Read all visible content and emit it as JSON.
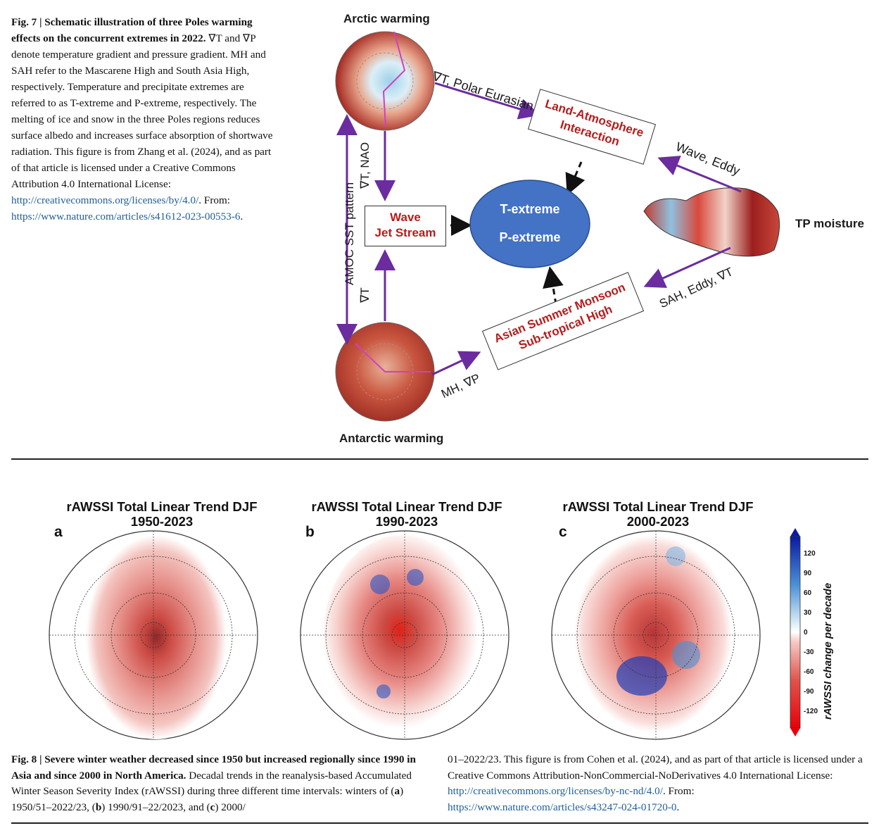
{
  "fig7": {
    "caption_bold": "Fig. 7 | Schematic illustration of three Poles warming effects on the concurrent extremes in 2022.",
    "caption_text": " ∇T and ∇P denote temperature gradient and pressure gradient. MH and SAH refer to the Mascarene High and South Asia High, respectively. Temperature and precipitate extremes are referred to as T-extreme and P-extreme, respectively. The melting of ice and snow in the three Poles regions reduces surface albedo and increases surface absorption of shortwave radiation. This figure is from Zhang et al. (2024), and as part of that article is licensed under a Creative Commons Attribution 4.0 International License: ",
    "link1": "http://creativecommons.org/licenses/by/4.0/",
    "caption_mid": ". From: ",
    "link2": "https://www.nature.com/articles/s41612-023-00553-6",
    "caption_end": ".",
    "labels": {
      "arctic": "Arctic warming",
      "antarctic": "Antarctic warming",
      "tp": "TP moisture",
      "polar_eurasian": "∇T, Polar Eurasian pattern",
      "wave_eddy": "Wave, Eddy",
      "sah": "SAH, Eddy, ∇T",
      "mh": "MH, ∇P",
      "amoc": "AMOC SST pattern",
      "t_nao": "∇T, NAO",
      "t_only": "∇T"
    },
    "boxes": {
      "land_1": "Land-Atmosphere",
      "land_2": "Interaction",
      "wave_1": "Wave",
      "wave_2": "Jet Stream",
      "asm_1": "Asian Summer Monsoon",
      "asm_2": "Sub-tropical High"
    },
    "ellipse": {
      "line1": "T-extreme",
      "line2": "P-extreme"
    }
  },
  "fig8": {
    "panels": [
      {
        "title1": "rAWSSI Total Linear Trend DJF",
        "title2": "1950-2023",
        "letter": "a"
      },
      {
        "title1": "rAWSSI Total Linear Trend DJF",
        "title2": "1990-2023",
        "letter": "b"
      },
      {
        "title1": "rAWSSI Total Linear Trend DJF",
        "title2": "2000-2023",
        "letter": "c"
      }
    ],
    "colorbar": {
      "title": "rAWSSI change per decade",
      "ticks": [
        "120",
        "90",
        "60",
        "30",
        "0",
        "-30",
        "-60",
        "-90",
        "-120"
      ]
    },
    "caption_bold": "Fig. 8 | Severe winter weather decreased since 1950 but increased regionally since 1990 in Asia and since 2000 in North America.",
    "caption_text1": " Decadal trends in the reanalysis-based Accumulated Winter Season Severity Index (rAWSSI) during three different time intervals: winters of (",
    "a": "a",
    "caption_text2": ") 1950/51–2022/23, (",
    "b": "b",
    "caption_text3": ") 1990/91–22/2023, and (",
    "c": "c",
    "caption_text4": ") 2000/",
    "caption_right": "01–2022/23. This figure is from Cohen et al. (2024), and as part of that article is licensed under a Creative Commons Attribution-NonCommercial-NoDerivatives 4.0 International License: ",
    "link3": "http://creativecommons.org/licenses/by-nc-nd/4.0/",
    "caption_right_mid": ". From: ",
    "link4": "https://www.nature.com/articles/s43247-024-01720-0",
    "caption_right_end": "."
  }
}
